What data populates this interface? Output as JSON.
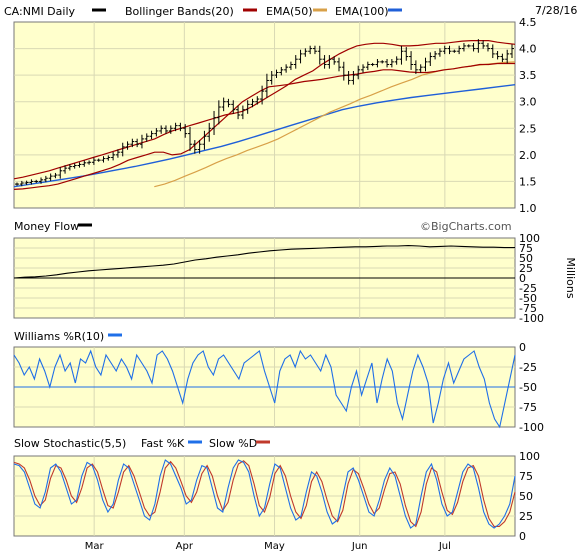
{
  "header": {
    "symbol_label": "CA:NMI Daily",
    "bb_label": "Bollinger Bands(20)",
    "ema50_label": "EMA(50)",
    "ema100_label": "EMA(100)",
    "date": "7/28/16",
    "watermark": "©BigCharts.com"
  },
  "colors": {
    "background": "#ffffcc",
    "grid": "#d9d9b4",
    "border": "#777777",
    "price": "#000000",
    "bollinger": "#a00000",
    "ema50": "#d8a048",
    "ema100": "#1f5fd8",
    "williams": "#1f6fe8",
    "fast_k": "#1f6fe8",
    "slow_d": "#c0392b",
    "zero_line": "#000000"
  },
  "x_axis": {
    "months": [
      "Mar",
      "Apr",
      "May",
      "Jun",
      "Jul"
    ],
    "month_positions": [
      0.16,
      0.34,
      0.52,
      0.69,
      0.86
    ]
  },
  "chart_data": [
    {
      "type": "line",
      "title": "CA:NMI Daily",
      "subtype": "ohlc",
      "ylim": [
        1.0,
        4.5
      ],
      "yticks": [
        "4.5",
        "4.0",
        "3.5",
        "3.0",
        "2.5",
        "2.0",
        "1.5",
        "1.0"
      ],
      "grid": true,
      "close": [
        1.45,
        1.47,
        1.48,
        1.5,
        1.5,
        1.53,
        1.56,
        1.6,
        1.62,
        1.7,
        1.75,
        1.78,
        1.8,
        1.82,
        1.85,
        1.86,
        1.9,
        1.9,
        1.93,
        1.95,
        2.0,
        2.05,
        2.15,
        2.2,
        2.25,
        2.2,
        2.3,
        2.35,
        2.4,
        2.45,
        2.5,
        2.45,
        2.5,
        2.55,
        2.5,
        2.4,
        2.2,
        2.1,
        2.2,
        2.35,
        2.5,
        2.7,
        2.9,
        3.0,
        2.95,
        2.85,
        2.75,
        2.85,
        2.95,
        3.0,
        3.05,
        3.2,
        3.4,
        3.5,
        3.55,
        3.6,
        3.65,
        3.7,
        3.8,
        3.9,
        3.95,
        4.0,
        3.95,
        3.8,
        3.7,
        3.8,
        3.75,
        3.65,
        3.5,
        3.4,
        3.5,
        3.6,
        3.65,
        3.7,
        3.7,
        3.75,
        3.75,
        3.7,
        3.75,
        3.8,
        3.95,
        3.85,
        3.7,
        3.6,
        3.65,
        3.75,
        3.85,
        3.9,
        3.95,
        4.0,
        3.95,
        3.95,
        4.0,
        4.05,
        4.05,
        4.0,
        4.1,
        4.05,
        4.0,
        3.9,
        3.85,
        3.8,
        3.9,
        4.0
      ],
      "series": [
        {
          "name": "Bollinger Bands(20) upper",
          "values": [
            1.55,
            1.58,
            1.62,
            1.66,
            1.7,
            1.75,
            1.8,
            1.85,
            1.9,
            1.95,
            2.0,
            2.05,
            2.1,
            2.15,
            2.2,
            2.25,
            2.3,
            2.38,
            2.45,
            2.5,
            2.55,
            2.6,
            2.65,
            2.7,
            2.75,
            2.78,
            2.82,
            2.9,
            3.0,
            3.1,
            3.2,
            3.3,
            3.42,
            3.5,
            3.58,
            3.7,
            3.8,
            3.9,
            3.98,
            4.05,
            4.08,
            4.1,
            4.1,
            4.08,
            4.05,
            4.05,
            4.06,
            4.08,
            4.1,
            4.1,
            4.12,
            4.14,
            4.15,
            4.15,
            4.15,
            4.12,
            4.1,
            4.08
          ]
        },
        {
          "name": "Bollinger Bands(20) lower",
          "values": [
            1.35,
            1.36,
            1.38,
            1.4,
            1.42,
            1.45,
            1.5,
            1.55,
            1.6,
            1.65,
            1.7,
            1.75,
            1.82,
            1.9,
            1.95,
            2.0,
            2.05,
            2.05,
            2.0,
            2.02,
            2.1,
            2.25,
            2.4,
            2.55,
            2.7,
            2.85,
            3.0,
            3.1,
            3.2,
            3.28,
            3.3,
            3.32,
            3.35,
            3.38,
            3.4,
            3.42,
            3.45,
            3.48,
            3.5,
            3.52,
            3.55,
            3.57,
            3.6,
            3.6,
            3.58,
            3.56,
            3.55,
            3.55,
            3.57,
            3.6,
            3.62,
            3.65,
            3.67,
            3.7,
            3.7,
            3.72,
            3.72,
            3.72
          ]
        },
        {
          "name": "EMA(50)",
          "values": [
            1.4,
            1.45,
            1.52,
            1.6,
            1.68,
            1.76,
            1.85,
            1.93,
            2.0,
            2.08,
            2.15,
            2.22,
            2.3,
            2.4,
            2.5,
            2.6,
            2.7,
            2.8,
            2.88,
            2.96,
            3.05,
            3.12,
            3.2,
            3.28,
            3.35,
            3.42,
            3.5,
            3.55,
            3.6,
            3.62,
            3.65,
            3.68,
            3.7,
            3.72,
            3.74,
            3.75
          ]
        },
        {
          "name": "EMA(100)",
          "values": [
            1.4,
            1.45,
            1.5,
            1.55,
            1.6,
            1.66,
            1.72,
            1.78,
            1.85,
            1.92,
            2.0,
            2.08,
            2.16,
            2.25,
            2.35,
            2.45,
            2.55,
            2.65,
            2.75,
            2.85,
            2.92,
            2.98,
            3.03,
            3.08,
            3.12,
            3.16,
            3.2,
            3.24,
            3.28,
            3.32
          ]
        }
      ]
    },
    {
      "type": "line",
      "title": "Money Flow",
      "ylabel": "Millions",
      "ylim": [
        -100,
        100
      ],
      "yticks": [
        "100",
        "75",
        "50",
        "25",
        "0",
        "-25",
        "-50",
        "-75",
        "-100"
      ],
      "series": [
        {
          "name": "Money Flow",
          "values": [
            0,
            2,
            3,
            5,
            8,
            12,
            15,
            18,
            20,
            22,
            24,
            26,
            28,
            30,
            32,
            35,
            40,
            45,
            48,
            52,
            55,
            58,
            62,
            65,
            68,
            70,
            72,
            73,
            74,
            75,
            76,
            77,
            78,
            78,
            79,
            80,
            80,
            81,
            80,
            78,
            79,
            80,
            79,
            78,
            77,
            77,
            76,
            76
          ]
        }
      ]
    },
    {
      "type": "line",
      "title": "Williams %R(10)",
      "ylim": [
        -100,
        0
      ],
      "yticks": [
        "0",
        "-25",
        "-50",
        "-75",
        "-100"
      ],
      "reference_line": -50,
      "series": [
        {
          "name": "Williams %R(10)",
          "values": [
            -10,
            -20,
            -35,
            -25,
            -40,
            -15,
            -30,
            -50,
            -25,
            -10,
            -30,
            -20,
            -45,
            -15,
            -20,
            -5,
            -25,
            -35,
            -10,
            -20,
            -30,
            -15,
            -25,
            -40,
            -10,
            -20,
            -30,
            -45,
            -10,
            -5,
            -15,
            -30,
            -50,
            -70,
            -40,
            -20,
            -10,
            -5,
            -25,
            -35,
            -15,
            -10,
            -20,
            -30,
            -40,
            -20,
            -15,
            -10,
            -5,
            -30,
            -50,
            -70,
            -30,
            -15,
            -10,
            -25,
            -5,
            -15,
            -10,
            -20,
            -30,
            -10,
            -25,
            -60,
            -70,
            -80,
            -50,
            -30,
            -60,
            -40,
            -20,
            -70,
            -40,
            -15,
            -30,
            -70,
            -90,
            -60,
            -30,
            -10,
            -25,
            -45,
            -95,
            -70,
            -40,
            -20,
            -45,
            -30,
            -15,
            -10,
            -5,
            -25,
            -40,
            -70,
            -90,
            -100,
            -70,
            -40,
            -10
          ]
        }
      ]
    },
    {
      "type": "line",
      "title": "Slow Stochastic(5,5)",
      "ylim": [
        0,
        100
      ],
      "yticks": [
        "100",
        "75",
        "50",
        "25",
        "0"
      ],
      "series": [
        {
          "name": "Fast %K",
          "values": [
            90,
            88,
            80,
            60,
            40,
            35,
            55,
            85,
            90,
            80,
            60,
            40,
            45,
            75,
            92,
            88,
            70,
            45,
            30,
            40,
            70,
            90,
            85,
            65,
            45,
            25,
            20,
            40,
            75,
            95,
            90,
            75,
            60,
            40,
            45,
            70,
            88,
            85,
            60,
            35,
            30,
            60,
            85,
            95,
            92,
            80,
            50,
            25,
            35,
            65,
            90,
            85,
            60,
            35,
            20,
            25,
            55,
            80,
            75,
            55,
            30,
            15,
            20,
            50,
            80,
            85,
            70,
            50,
            30,
            25,
            45,
            70,
            85,
            75,
            50,
            25,
            10,
            15,
            50,
            80,
            90,
            70,
            40,
            25,
            30,
            55,
            80,
            90,
            85,
            60,
            30,
            15,
            10,
            15,
            25,
            40,
            75
          ]
        },
        {
          "name": "Slow %D",
          "values": [
            92,
            90,
            85,
            70,
            50,
            38,
            45,
            72,
            88,
            85,
            70,
            50,
            42,
            60,
            85,
            90,
            80,
            58,
            38,
            35,
            55,
            80,
            88,
            75,
            55,
            35,
            25,
            30,
            55,
            85,
            93,
            85,
            68,
            50,
            42,
            55,
            78,
            88,
            75,
            50,
            32,
            42,
            70,
            90,
            94,
            88,
            65,
            38,
            30,
            48,
            78,
            88,
            75,
            50,
            30,
            22,
            38,
            68,
            80,
            68,
            45,
            25,
            18,
            32,
            65,
            83,
            78,
            60,
            40,
            28,
            35,
            58,
            78,
            80,
            65,
            38,
            18,
            12,
            30,
            65,
            85,
            80,
            55,
            32,
            27,
            42,
            68,
            85,
            88,
            75,
            45,
            22,
            12,
            12,
            18,
            30,
            55
          ]
        }
      ]
    }
  ]
}
